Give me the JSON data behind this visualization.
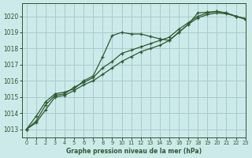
{
  "title": "Graphe pression niveau de la mer (hPa)",
  "background_color": "#cdeaea",
  "grid_color": "#a8cccc",
  "line_color": "#2d5a2d",
  "xlim": [
    -0.5,
    23
  ],
  "ylim": [
    1012.5,
    1020.8
  ],
  "yticks": [
    1013,
    1014,
    1015,
    1016,
    1017,
    1018,
    1019,
    1020
  ],
  "xticks": [
    0,
    1,
    2,
    3,
    4,
    5,
    6,
    7,
    8,
    9,
    10,
    11,
    12,
    13,
    14,
    15,
    16,
    17,
    18,
    19,
    20,
    21,
    22,
    23
  ],
  "series": [
    [
      1013.0,
      1013.8,
      1014.7,
      1015.2,
      1015.3,
      1015.5,
      1016.0,
      1016.3,
      1017.5,
      1018.8,
      1019.0,
      1018.9,
      1018.9,
      1018.75,
      1018.6,
      1018.5,
      1019.0,
      1019.5,
      1020.2,
      1020.25,
      1020.3,
      1020.2,
      1020.0,
      1019.8
    ],
    [
      1013.0,
      1013.5,
      1014.5,
      1015.1,
      1015.2,
      1015.6,
      1015.9,
      1016.2,
      1016.8,
      1017.2,
      1017.7,
      1017.9,
      1018.1,
      1018.3,
      1018.5,
      1018.7,
      1019.2,
      1019.6,
      1020.0,
      1020.2,
      1020.3,
      1020.2,
      1020.0,
      1019.85
    ],
    [
      1013.0,
      1013.4,
      1014.2,
      1015.0,
      1015.1,
      1015.4,
      1015.75,
      1016.0,
      1016.4,
      1016.8,
      1017.2,
      1017.5,
      1017.8,
      1018.0,
      1018.2,
      1018.5,
      1019.0,
      1019.5,
      1019.9,
      1020.1,
      1020.2,
      1020.15,
      1020.0,
      1019.85
    ]
  ]
}
